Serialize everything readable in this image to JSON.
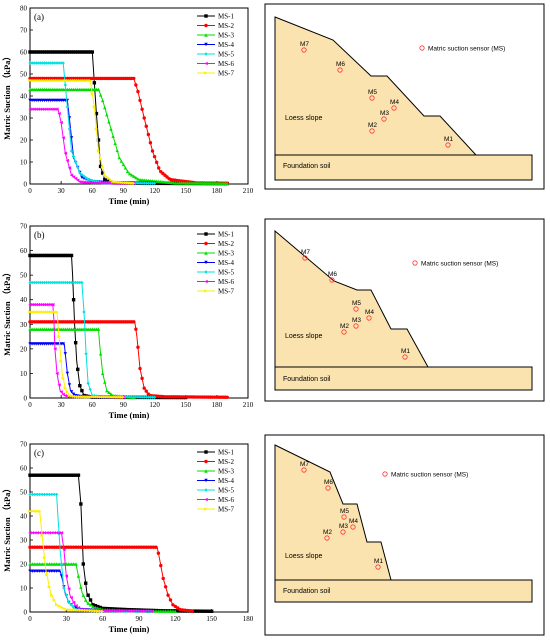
{
  "chart_data": [
    {
      "type": "line",
      "panel_label": "(a)",
      "xlabel": "Time (min)",
      "ylabel": "Matric Suction （kPa）",
      "xlim": [
        0,
        210
      ],
      "ylim": [
        0,
        80
      ],
      "xticks": [
        0,
        30,
        60,
        90,
        120,
        150,
        180,
        210
      ],
      "yticks": [
        0,
        10,
        20,
        30,
        40,
        50,
        60,
        70,
        80
      ],
      "legend_position": "top-right",
      "series": [
        {
          "name": "MS-1",
          "color": "#000000",
          "x": [
            0,
            60,
            64,
            68,
            72,
            80,
            120,
            190
          ],
          "y": [
            60,
            60,
            32,
            8,
            2,
            0.5,
            0.3,
            0.2
          ]
        },
        {
          "name": "MS-2",
          "color": "#ff0000",
          "x": [
            0,
            100,
            104,
            110,
            118,
            125,
            135,
            160,
            190
          ],
          "y": [
            48,
            48,
            42,
            30,
            15,
            6,
            2,
            0.5,
            0.3
          ]
        },
        {
          "name": "MS-3",
          "color": "#00dd00",
          "x": [
            0,
            66,
            70,
            78,
            86,
            95,
            105,
            140,
            190
          ],
          "y": [
            43,
            43,
            38,
            25,
            12,
            5,
            2,
            0.5,
            0.3
          ]
        },
        {
          "name": "MS-4",
          "color": "#0000ff",
          "x": [
            0,
            36,
            38,
            42,
            50,
            60,
            80,
            120
          ],
          "y": [
            38,
            38,
            30,
            12,
            3,
            1,
            0.5,
            0.3
          ]
        },
        {
          "name": "MS-5",
          "color": "#00e0e0",
          "x": [
            0,
            32,
            35,
            40,
            48,
            56,
            70,
            120
          ],
          "y": [
            55,
            55,
            40,
            15,
            5,
            2,
            0.5,
            0.3
          ]
        },
        {
          "name": "MS-6",
          "color": "#ff00ff",
          "x": [
            0,
            27,
            30,
            34,
            40,
            48,
            60,
            100
          ],
          "y": [
            34,
            34,
            28,
            14,
            4,
            1,
            0.5,
            0.3
          ]
        },
        {
          "name": "MS-7",
          "color": "#ffee00",
          "x": [
            0,
            58,
            62,
            66,
            72,
            80,
            100
          ],
          "y": [
            47,
            47,
            35,
            15,
            4,
            1,
            0.3
          ]
        }
      ]
    },
    {
      "type": "line",
      "panel_label": "(b)",
      "xlabel": "Time (min)",
      "ylabel": "Matric Suction （kPa）",
      "xlim": [
        0,
        210
      ],
      "ylim": [
        0,
        70
      ],
      "xticks": [
        0,
        30,
        60,
        90,
        120,
        150,
        180,
        210
      ],
      "yticks": [
        0,
        10,
        20,
        30,
        40,
        50,
        60,
        70
      ],
      "legend_position": "top-right",
      "series": [
        {
          "name": "MS-1",
          "color": "#000000",
          "x": [
            0,
            40,
            41,
            43,
            45,
            48,
            52,
            60,
            150
          ],
          "y": [
            58,
            58,
            50,
            30,
            15,
            5,
            1,
            0.3,
            0.2
          ]
        },
        {
          "name": "MS-2",
          "color": "#ff0000",
          "x": [
            0,
            101,
            103,
            106,
            110,
            115,
            130,
            190
          ],
          "y": [
            31,
            31,
            25,
            12,
            4,
            1,
            0.5,
            0.3
          ]
        },
        {
          "name": "MS-3",
          "color": "#00dd00",
          "x": [
            0,
            66,
            67,
            70,
            74,
            80,
            100
          ],
          "y": [
            28,
            28,
            22,
            10,
            3,
            1,
            0.3
          ]
        },
        {
          "name": "MS-4",
          "color": "#0000ff",
          "x": [
            0,
            33,
            34,
            36,
            39,
            43,
            50,
            90
          ],
          "y": [
            22,
            22,
            18,
            10,
            3,
            1,
            0.5,
            0.3
          ]
        },
        {
          "name": "MS-5",
          "color": "#00e0e0",
          "x": [
            0,
            50,
            52,
            54,
            56,
            60,
            70,
            120
          ],
          "y": [
            47,
            47,
            35,
            18,
            6,
            1,
            0.5,
            0.3
          ]
        },
        {
          "name": "MS-6",
          "color": "#ff00ff",
          "x": [
            0,
            22,
            23,
            24,
            26,
            29,
            33,
            40,
            90
          ],
          "y": [
            38,
            38,
            32,
            20,
            10,
            3,
            1,
            0.5,
            0.3
          ]
        },
        {
          "name": "MS-7",
          "color": "#ffee00",
          "x": [
            0,
            26,
            27,
            29,
            31,
            34,
            38,
            45,
            90
          ],
          "y": [
            35,
            35,
            30,
            20,
            10,
            4,
            1,
            0.5,
            0.3
          ]
        }
      ]
    },
    {
      "type": "line",
      "panel_label": "(c)",
      "xlabel": "Time (min)",
      "ylabel": "Matric Suction （kPa）",
      "xlim": [
        0,
        180
      ],
      "ylim": [
        0,
        70
      ],
      "xticks": [
        0,
        30,
        60,
        90,
        120,
        150,
        180
      ],
      "yticks": [
        0,
        10,
        20,
        30,
        40,
        50,
        60,
        70
      ],
      "legend_position": "top-right",
      "series": [
        {
          "name": "MS-1",
          "color": "#000000",
          "x": [
            0,
            40,
            42,
            44,
            47,
            52,
            60,
            80,
            110,
            150
          ],
          "y": [
            57,
            57,
            45,
            20,
            8,
            3,
            1.5,
            1,
            0.5,
            0.3
          ]
        },
        {
          "name": "MS-2",
          "color": "#ff0000",
          "x": [
            0,
            105,
            107,
            110,
            114,
            118,
            124,
            135
          ],
          "y": [
            27,
            27,
            22,
            14,
            7,
            3,
            1,
            0.3
          ]
        },
        {
          "name": "MS-3",
          "color": "#00dd00",
          "x": [
            0,
            38,
            40,
            43,
            47,
            53,
            60,
            80,
            120
          ],
          "y": [
            20,
            20,
            15,
            8,
            4,
            2,
            1,
            0.5,
            0.3
          ]
        },
        {
          "name": "MS-4",
          "color": "#0000ff",
          "x": [
            0,
            25,
            27,
            29,
            32,
            36,
            42,
            60,
            100
          ],
          "y": [
            17,
            17,
            13,
            8,
            4,
            2,
            1,
            0.5,
            0.3
          ]
        },
        {
          "name": "MS-5",
          "color": "#00e0e0",
          "x": [
            0,
            22,
            23,
            25,
            28,
            32,
            38,
            60,
            100
          ],
          "y": [
            49,
            49,
            40,
            25,
            10,
            4,
            1,
            0.5,
            0.3
          ]
        },
        {
          "name": "MS-6",
          "color": "#ff00ff",
          "x": [
            0,
            26,
            28,
            30,
            33,
            37,
            42,
            60,
            100
          ],
          "y": [
            33,
            33,
            26,
            15,
            7,
            3,
            1,
            0.5,
            0.3
          ]
        },
        {
          "name": "MS-7",
          "color": "#ffee00",
          "x": [
            0,
            8,
            10,
            13,
            17,
            22,
            30,
            60
          ],
          "y": [
            42,
            42,
            32,
            18,
            8,
            3,
            1,
            0.3
          ]
        }
      ]
    }
  ],
  "diagrams": [
    {
      "legend": "Matric suction sensor (MS)",
      "slope_label": "Loess slope",
      "foundation_label": "Foundation soil",
      "sensors": [
        "M7",
        "M6",
        "M5",
        "M4",
        "M3",
        "M2",
        "M1"
      ]
    },
    {
      "legend": "Matric suction sensor (MS)",
      "slope_label": "Loess slope",
      "foundation_label": "Foundation soil",
      "sensors": [
        "M7",
        "M6",
        "M5",
        "M4",
        "M3",
        "M2",
        "M1"
      ]
    },
    {
      "legend": "Matric suction sensor (MS)",
      "slope_label": "Loess slope",
      "foundation_label": "Foundation soil",
      "sensors": [
        "M7",
        "M6",
        "M5",
        "M4",
        "M3",
        "M2",
        "M1"
      ]
    }
  ],
  "colors": {
    "soil_fill": "#fbe3b0",
    "sensor": "#ff3333"
  }
}
